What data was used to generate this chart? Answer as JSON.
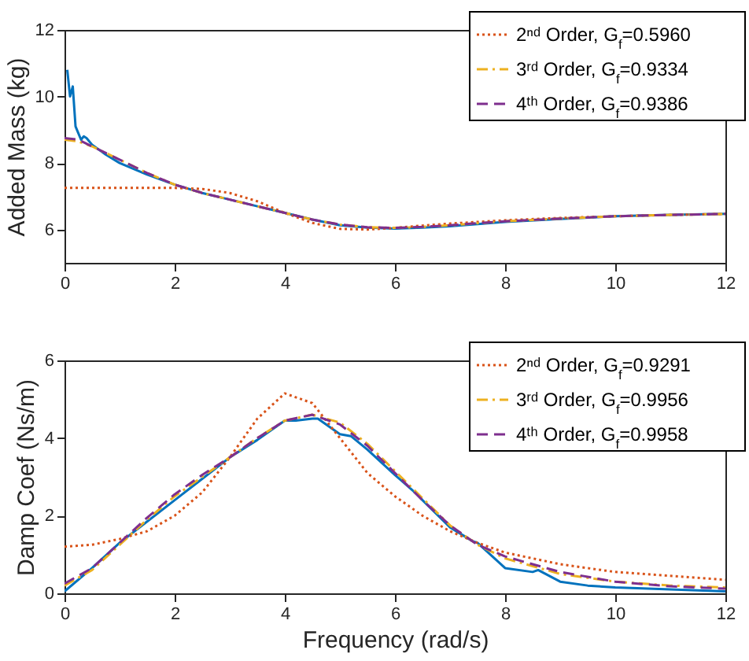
{
  "chart_data": [
    {
      "type": "line",
      "ylabel": "Added Mass (kg)",
      "xlim": [
        0,
        12
      ],
      "xticks": [
        0,
        2,
        4,
        6,
        8,
        10,
        12
      ],
      "ylim": [
        5,
        12
      ],
      "yticks": [
        6,
        8,
        10,
        12
      ],
      "grid": false,
      "legend": "top right",
      "x": [
        0,
        0.25,
        0.5,
        0.75,
        1,
        1.5,
        2,
        2.5,
        3,
        3.5,
        4,
        4.5,
        5,
        5.5,
        6,
        6.5,
        7,
        8,
        9,
        10,
        11,
        12
      ],
      "series": [
        {
          "color": "#0072bd",
          "line_style": "solid",
          "x": [
            0.05,
            0.1,
            0.15,
            0.2,
            0.25,
            0.3,
            0.35,
            0.4,
            0.5,
            0.75,
            1,
            1.5,
            2,
            2.5,
            3,
            3.5,
            4,
            4.5,
            5,
            5.5,
            6,
            6.5,
            7,
            8,
            9,
            10,
            11,
            12
          ],
          "values": [
            10.8,
            10.0,
            10.3,
            9.1,
            8.9,
            8.7,
            8.8,
            8.75,
            8.55,
            8.25,
            8.0,
            7.65,
            7.35,
            7.1,
            6.9,
            6.7,
            6.5,
            6.3,
            6.13,
            6.06,
            6.03,
            6.06,
            6.1,
            6.23,
            6.32,
            6.4,
            6.44,
            6.47
          ]
        },
        {
          "name": "2ⁿᵈ Order, G$_{f}$=0.5960",
          "color": "#d95319",
          "line_style": "dotted",
          "values": [
            7.25,
            7.25,
            7.25,
            7.25,
            7.25,
            7.25,
            7.25,
            7.22,
            7.1,
            6.85,
            6.5,
            6.2,
            6.02,
            6.0,
            6.05,
            6.12,
            6.18,
            6.28,
            6.35,
            6.4,
            6.44,
            6.47
          ]
        },
        {
          "name": "3ʳᵈ Order, G$_{f}$=0.9334",
          "color": "#edb120",
          "line_style": "dashdot",
          "values": [
            8.7,
            8.65,
            8.5,
            8.3,
            8.1,
            7.7,
            7.35,
            7.1,
            6.9,
            6.7,
            6.5,
            6.3,
            6.15,
            6.07,
            6.05,
            6.08,
            6.13,
            6.25,
            6.33,
            6.4,
            6.44,
            6.47
          ]
        },
        {
          "name": "4ᵗʰ Order, G$_{f}$=0.9386",
          "color": "#7e2f8e",
          "line_style": "dashed",
          "values": [
            8.75,
            8.7,
            8.5,
            8.3,
            8.1,
            7.7,
            7.35,
            7.1,
            6.9,
            6.7,
            6.5,
            6.3,
            6.15,
            6.07,
            6.05,
            6.08,
            6.13,
            6.25,
            6.33,
            6.4,
            6.44,
            6.47
          ]
        }
      ]
    },
    {
      "type": "line",
      "xlabel": "Frequency (rad/s)",
      "ylabel": "Damp Coef (Ns/m)",
      "xlim": [
        0,
        12
      ],
      "xticks": [
        0,
        2,
        4,
        6,
        8,
        10,
        12
      ],
      "ylim": [
        0,
        6
      ],
      "yticks": [
        0,
        2,
        4,
        6
      ],
      "grid": false,
      "legend": "top right",
      "x": [
        0,
        0.5,
        1,
        1.5,
        2,
        2.5,
        3,
        3.5,
        4,
        4.5,
        5,
        5.5,
        6,
        6.5,
        7,
        7.5,
        8,
        9,
        10,
        11,
        12
      ],
      "series": [
        {
          "color": "#0072bd",
          "line_style": "solid",
          "x": [
            0,
            0.5,
            1,
            1.5,
            2,
            2.5,
            3,
            3.5,
            4,
            4.2,
            4.5,
            4.6,
            5,
            5.2,
            5.5,
            6,
            6.4,
            6.5,
            7,
            7.4,
            7.5,
            8,
            8.5,
            8.6,
            9,
            9.5,
            10,
            11,
            12
          ],
          "values": [
            0.05,
            0.65,
            1.3,
            1.85,
            2.4,
            2.95,
            3.5,
            3.95,
            4.45,
            4.45,
            4.5,
            4.5,
            4.1,
            4.05,
            3.7,
            3.05,
            2.55,
            2.4,
            1.7,
            1.35,
            1.3,
            0.65,
            0.55,
            0.6,
            0.3,
            0.2,
            0.15,
            0.1,
            0.05
          ]
        },
        {
          "name": "2ⁿᵈ Order, G$_{f}$=0.9291",
          "color": "#d95319",
          "line_style": "dotted",
          "values": [
            1.2,
            1.25,
            1.4,
            1.6,
            2.0,
            2.6,
            3.5,
            4.5,
            5.15,
            4.9,
            4.0,
            3.1,
            2.5,
            2.0,
            1.6,
            1.3,
            1.05,
            0.75,
            0.55,
            0.45,
            0.35
          ]
        },
        {
          "name": "3ʳᵈ Order, G$_{f}$=0.9956",
          "color": "#edb120",
          "line_style": "dashdot",
          "values": [
            0.2,
            0.6,
            1.25,
            1.9,
            2.5,
            3.0,
            3.5,
            4.0,
            4.45,
            4.6,
            4.4,
            3.85,
            3.15,
            2.45,
            1.75,
            1.25,
            0.9,
            0.5,
            0.3,
            0.2,
            0.15
          ]
        },
        {
          "name": "4ᵗʰ Order, G$_{f}$=0.9958",
          "color": "#7e2f8e",
          "line_style": "dashed",
          "values": [
            0.25,
            0.65,
            1.3,
            1.95,
            2.55,
            3.05,
            3.5,
            4.0,
            4.45,
            4.6,
            4.35,
            3.8,
            3.1,
            2.4,
            1.75,
            1.25,
            0.95,
            0.55,
            0.3,
            0.18,
            0.12
          ]
        }
      ]
    }
  ]
}
